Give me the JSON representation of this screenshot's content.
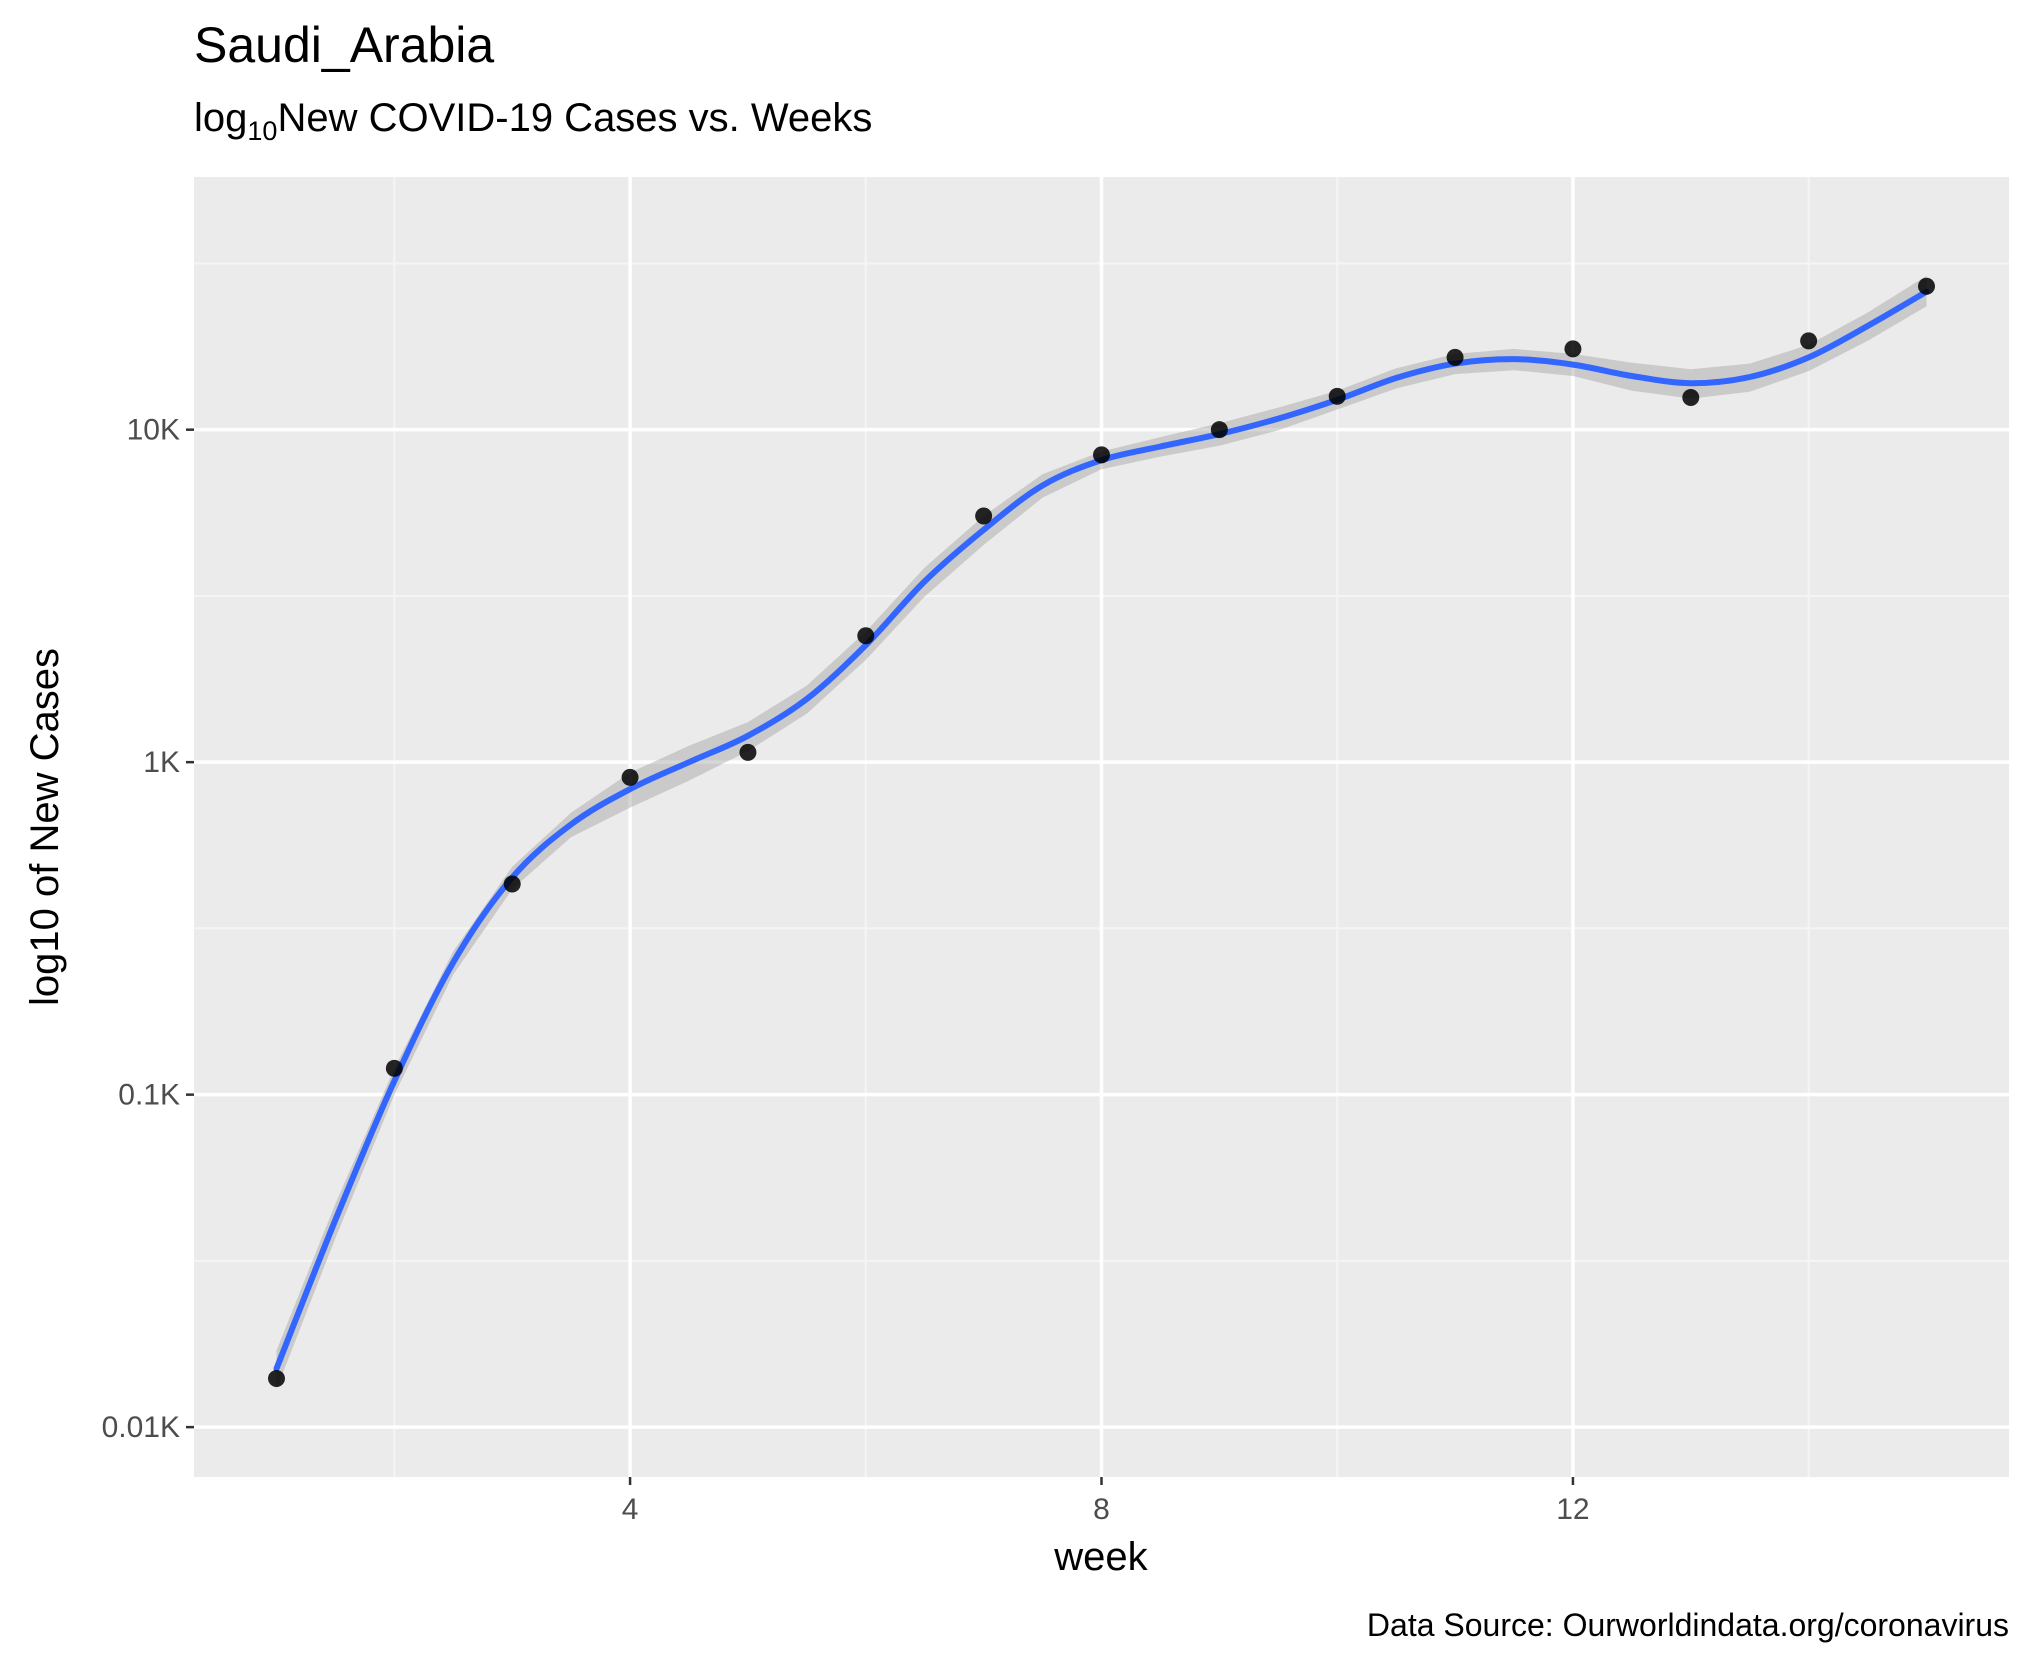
{
  "chart_data": {
    "type": "scatter",
    "title": "Saudi_Arabia",
    "subtitle": {
      "prefix": "log",
      "subscript": "10",
      "suffix": "New COVID-19 Cases vs. Weeks"
    },
    "xlabel": "week",
    "ylabel": "log10 of New Cases",
    "caption": "Data Source: Ourworldindata.org/coronavirus",
    "y_scale": "log10",
    "xlim": [
      0.3,
      15.7
    ],
    "ylim_log10": [
      0.85,
      4.76
    ],
    "x_ticks": [
      {
        "value": 4,
        "label": "4"
      },
      {
        "value": 8,
        "label": "8"
      },
      {
        "value": 12,
        "label": "12"
      }
    ],
    "x_minor_ticks": [
      2,
      6,
      10,
      14
    ],
    "y_ticks": [
      {
        "value": 10,
        "label": "0.01K"
      },
      {
        "value": 100,
        "label": "0.1K"
      },
      {
        "value": 1000,
        "label": "1K"
      },
      {
        "value": 10000,
        "label": "10K"
      }
    ],
    "y_minor_ticks": [
      31.62,
      316.2,
      3162,
      31623
    ],
    "points": {
      "name": "weekly new cases",
      "color": "#000000",
      "x": [
        1,
        2,
        3,
        4,
        5,
        6,
        7,
        8,
        9,
        10,
        11,
        12,
        13,
        14,
        15
      ],
      "y": [
        14,
        120,
        430,
        900,
        1070,
        2400,
        5500,
        8400,
        10000,
        12600,
        16500,
        17500,
        12500,
        18500,
        27000
      ]
    },
    "smooth": {
      "method": "loess",
      "color": "#3366ff",
      "band_color": "#999999",
      "x": [
        1,
        1.5,
        2,
        2.5,
        3,
        3.5,
        4,
        4.5,
        5,
        5.5,
        6,
        6.5,
        7,
        7.5,
        8,
        8.5,
        9,
        9.5,
        10,
        10.5,
        11,
        11.5,
        12,
        12.5,
        13,
        13.5,
        14,
        14.5,
        15
      ],
      "y": [
        15,
        42,
        110,
        250,
        450,
        650,
        830,
        1000,
        1200,
        1550,
        2250,
        3500,
        5000,
        6800,
        8100,
        8900,
        9700,
        10800,
        12300,
        14300,
        15800,
        16300,
        15700,
        14500,
        13800,
        14400,
        16500,
        20500,
        26000
      ],
      "lower": [
        13,
        37,
        100,
        230,
        415,
        595,
        730,
        880,
        1080,
        1400,
        2030,
        3150,
        4500,
        6250,
        7600,
        8300,
        8950,
        9950,
        11500,
        13300,
        14700,
        15100,
        14500,
        13100,
        12400,
        13000,
        15000,
        18500,
        23500
      ],
      "upper": [
        17,
        47,
        120,
        270,
        485,
        705,
        930,
        1120,
        1320,
        1700,
        2470,
        3850,
        5500,
        7350,
        8600,
        9500,
        10450,
        11650,
        13100,
        15300,
        16900,
        17500,
        16900,
        15900,
        15200,
        15800,
        18000,
        22500,
        29000
      ]
    },
    "colors": {
      "panel": "#ebebeb",
      "grid_major": "#ffffff",
      "grid_minor": "#f5f5f5",
      "ticks": "#333333"
    }
  }
}
